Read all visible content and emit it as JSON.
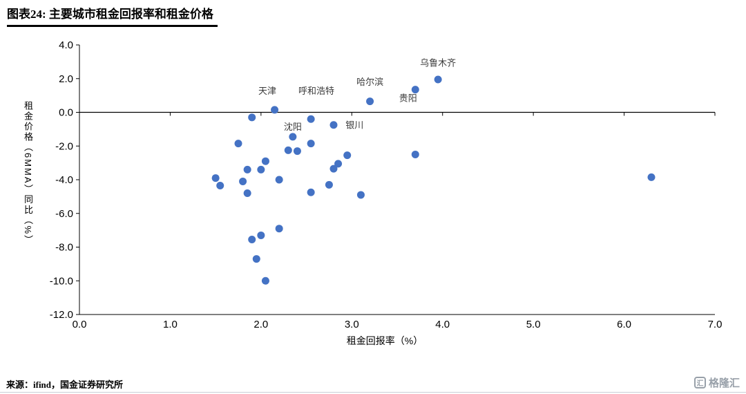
{
  "header": {
    "title": "图表24: 主要城市租金回报率和租金价格"
  },
  "footer": {
    "source": "来源：ifind，国金证券研究所",
    "logo_text": "格隆汇",
    "logo_icon": "汇"
  },
  "chart_data": {
    "type": "scatter",
    "title": "主要城市租金回报率和租金价格",
    "xlabel": "租金回报率（%）",
    "ylabel": "租金价格（6MMA）同比（%）",
    "xlim": [
      0,
      7
    ],
    "ylim": [
      -12,
      4
    ],
    "xticks": [
      0,
      1,
      2,
      3,
      4,
      5,
      6,
      7
    ],
    "xtick_labels": [
      "0.0",
      "1.0",
      "2.0",
      "3.0",
      "4.0",
      "5.0",
      "6.0",
      "7.0"
    ],
    "yticks": [
      4,
      2,
      0,
      -2,
      -4,
      -6,
      -8,
      -10,
      -12
    ],
    "ytick_labels": [
      "4.0",
      "2.0",
      "0.0",
      "-2.0",
      "-4.0",
      "-6.0",
      "-8.0",
      "-10.0",
      "-12.0"
    ],
    "grid": false,
    "legend": false,
    "point_color": "#4472C4",
    "points": [
      {
        "x": 1.5,
        "y": -3.9
      },
      {
        "x": 1.55,
        "y": -4.35
      },
      {
        "x": 1.75,
        "y": -1.85
      },
      {
        "x": 1.8,
        "y": -4.1
      },
      {
        "x": 1.85,
        "y": -3.4
      },
      {
        "x": 1.9,
        "y": -0.3
      },
      {
        "x": 1.85,
        "y": -4.8
      },
      {
        "x": 1.9,
        "y": -7.55
      },
      {
        "x": 1.95,
        "y": -8.7
      },
      {
        "x": 2.0,
        "y": -7.3
      },
      {
        "x": 2.0,
        "y": -3.4
      },
      {
        "x": 2.05,
        "y": -10.0
      },
      {
        "x": 2.05,
        "y": -2.9
      },
      {
        "x": 2.15,
        "y": 0.15,
        "name": "天津"
      },
      {
        "x": 2.2,
        "y": -4.0
      },
      {
        "x": 2.2,
        "y": -6.9
      },
      {
        "x": 2.3,
        "y": -2.25
      },
      {
        "x": 2.35,
        "y": -1.45,
        "name": "沈阳"
      },
      {
        "x": 2.4,
        "y": -2.3
      },
      {
        "x": 2.55,
        "y": -0.4,
        "name": "呼和浩特"
      },
      {
        "x": 2.55,
        "y": -1.85
      },
      {
        "x": 2.55,
        "y": -4.75
      },
      {
        "x": 2.75,
        "y": -4.3
      },
      {
        "x": 2.8,
        "y": -0.75,
        "name": "银川"
      },
      {
        "x": 2.8,
        "y": -3.35
      },
      {
        "x": 2.85,
        "y": -3.05
      },
      {
        "x": 2.95,
        "y": -2.55
      },
      {
        "x": 3.1,
        "y": -4.9
      },
      {
        "x": 3.2,
        "y": 0.65,
        "name": "哈尔滨"
      },
      {
        "x": 3.7,
        "y": 1.35,
        "name": "贵阳"
      },
      {
        "x": 3.7,
        "y": -2.5
      },
      {
        "x": 3.95,
        "y": 1.95,
        "name": "乌鲁木齐"
      },
      {
        "x": 6.3,
        "y": -3.85
      }
    ],
    "annotations": [
      {
        "text": "天津",
        "x": 2.07,
        "y": 1.25
      },
      {
        "text": "呼和浩特",
        "x": 2.61,
        "y": 1.25
      },
      {
        "text": "哈尔滨",
        "x": 3.2,
        "y": 1.78
      },
      {
        "text": "乌鲁木齐",
        "x": 3.95,
        "y": 2.92
      },
      {
        "text": "贵阳",
        "x": 3.62,
        "y": 0.82
      },
      {
        "text": "沈阳",
        "x": 2.35,
        "y": -0.88
      },
      {
        "text": "银川",
        "x": 3.03,
        "y": -0.78
      }
    ]
  }
}
